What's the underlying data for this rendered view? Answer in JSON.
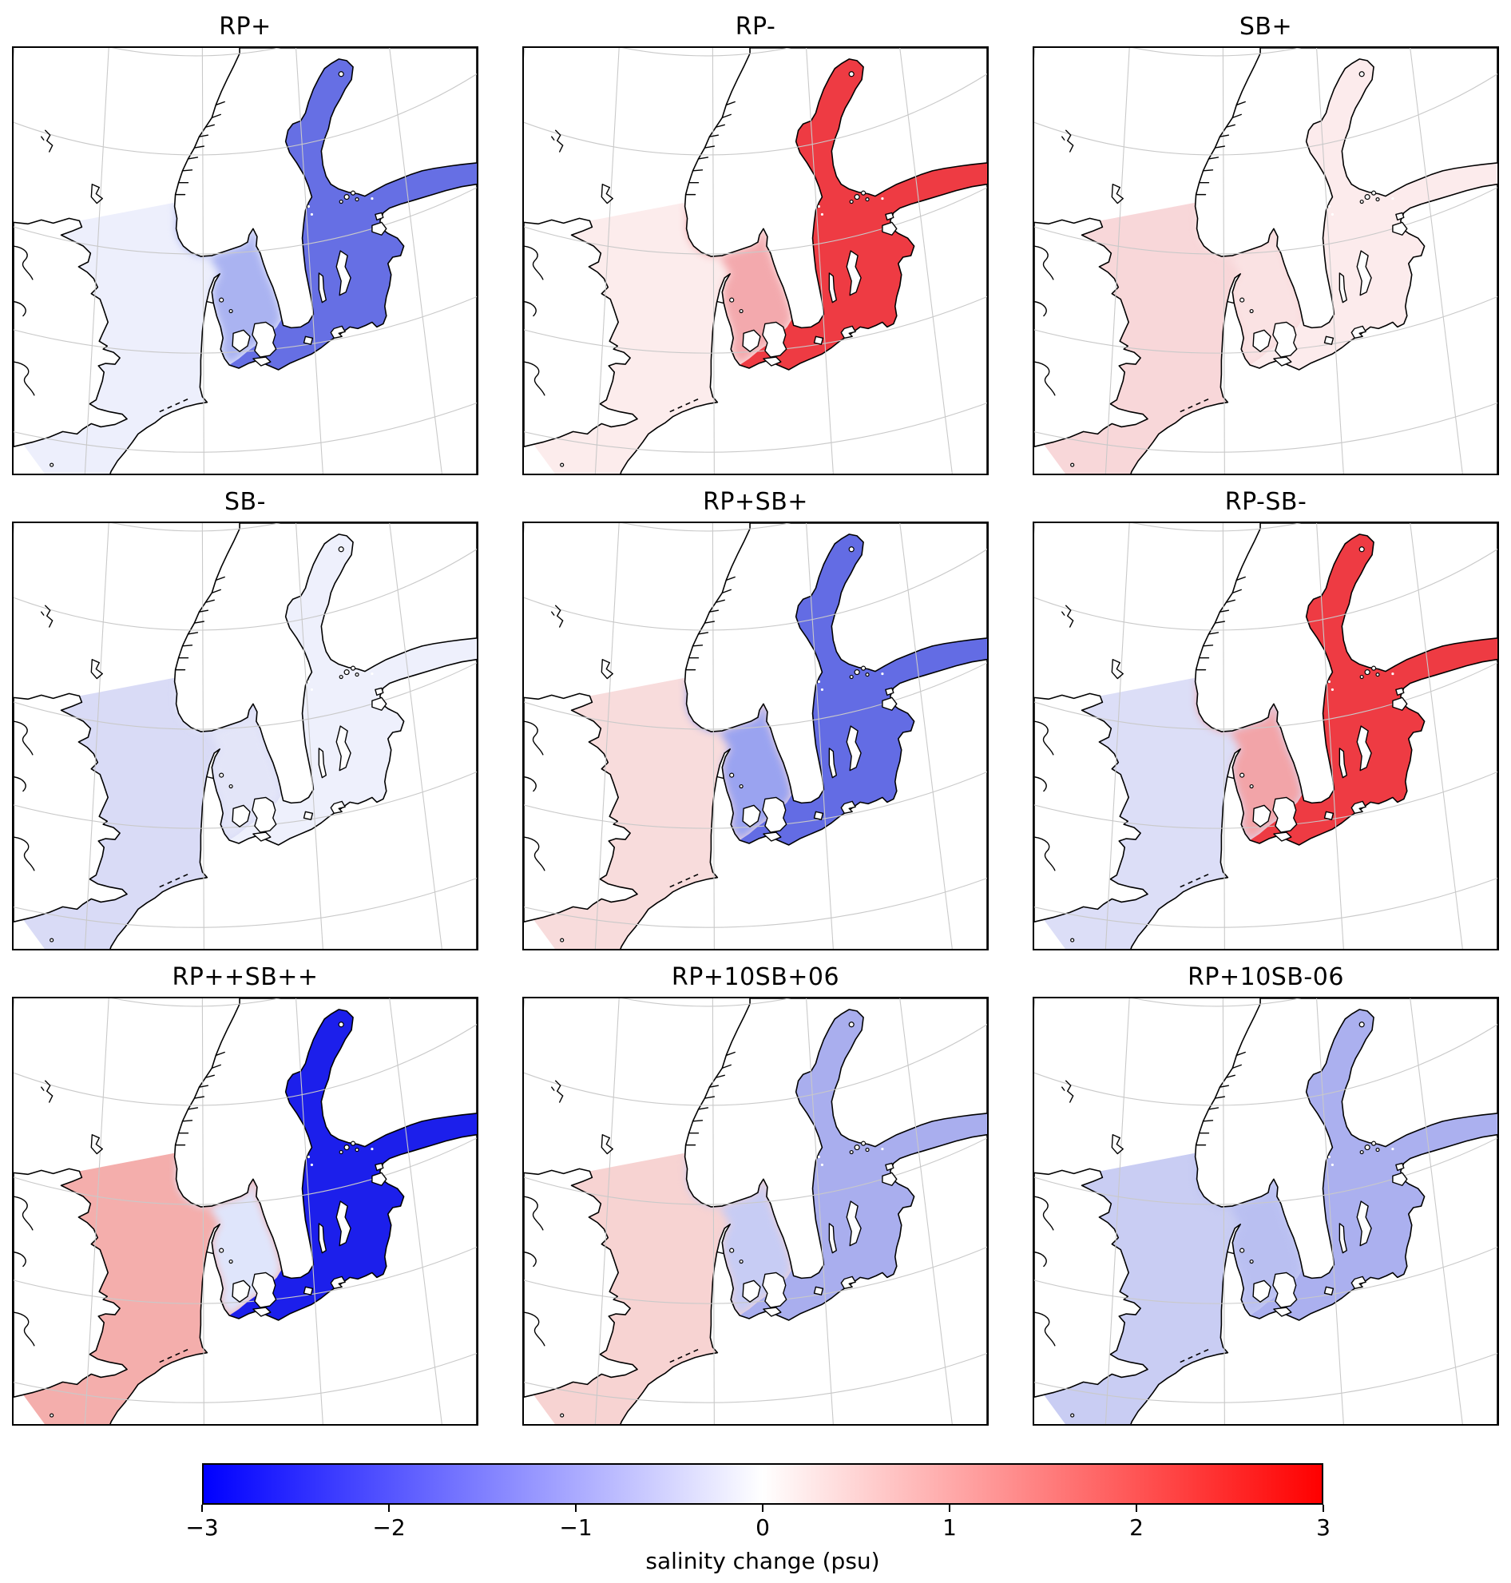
{
  "figure": {
    "panels": [
      {
        "title": "RP+",
        "colors": {
          "north_sea": "#edeffc",
          "kattegat": "#aab3f1",
          "baltic": "#666fe4"
        }
      },
      {
        "title": "RP-",
        "colors": {
          "north_sea": "#fcecec",
          "kattegat": "#f3a9ad",
          "baltic": "#ee3b43"
        }
      },
      {
        "title": "SB+",
        "colors": {
          "north_sea": "#f8d7d9",
          "kattegat": "#fae2e3",
          "baltic": "#fcebec"
        }
      },
      {
        "title": "SB-",
        "colors": {
          "north_sea": "#d9dbf6",
          "kattegat": "#e3e5f8",
          "baltic": "#eef0fc"
        }
      },
      {
        "title": "RP+SB+",
        "colors": {
          "north_sea": "#f8dcdc",
          "kattegat": "#9aa3f0",
          "baltic": "#636ce4"
        }
      },
      {
        "title": "RP-SB-",
        "colors": {
          "north_sea": "#dcdef7",
          "kattegat": "#f2a4a8",
          "baltic": "#ee3b43"
        }
      },
      {
        "title": "RP++SB++",
        "colors": {
          "north_sea": "#f4aeac",
          "kattegat": "#dfe5fb",
          "baltic": "#1c1feb"
        }
      },
      {
        "title": "RP+10SB+06",
        "colors": {
          "north_sea": "#f7d3d2",
          "kattegat": "#c7ccf4",
          "baltic": "#a9aeee"
        }
      },
      {
        "title": "RP+10SB-06",
        "colors": {
          "north_sea": "#c9cdf3",
          "kattegat": "#b9bff1",
          "baltic": "#abb0ef"
        }
      }
    ],
    "colorbar": {
      "label": "salinity change (psu)",
      "min": -3,
      "max": 3,
      "ticks": [
        "−3",
        "−2",
        "−1",
        "0",
        "1",
        "2",
        "3"
      ],
      "gradient": [
        "#0000ff",
        "#ffffff",
        "#ff0000"
      ]
    }
  },
  "chart_data": {
    "type": "heatmap",
    "subtype": "geographic map grid (choropleth of salinity change)",
    "grid": "3 rows x 3 columns",
    "region_shown": "North Sea, Skagerrak/Kattegat and Baltic Sea",
    "colorbar": {
      "label": "salinity change (psu)",
      "min": -3,
      "max": 3,
      "ticks": [
        -3,
        -2,
        -1,
        0,
        1,
        2,
        3
      ],
      "colormap": "blue-white-red (bwr)"
    },
    "panels": [
      {
        "title": "RP+",
        "estimated_mean_change_psu": {
          "north_sea": -0.1,
          "kattegat_skagerrak": -0.9,
          "baltic_sea": -1.8
        }
      },
      {
        "title": "RP-",
        "estimated_mean_change_psu": {
          "north_sea": 0.1,
          "kattegat_skagerrak": 1.0,
          "baltic_sea": 2.3
        }
      },
      {
        "title": "SB+",
        "estimated_mean_change_psu": {
          "north_sea": 0.45,
          "kattegat_skagerrak": 0.3,
          "baltic_sea": 0.2
        }
      },
      {
        "title": "SB-",
        "estimated_mean_change_psu": {
          "north_sea": -0.45,
          "kattegat_skagerrak": -0.3,
          "baltic_sea": -0.2
        }
      },
      {
        "title": "RP+SB+",
        "estimated_mean_change_psu": {
          "north_sea": 0.4,
          "kattegat_skagerrak": -1.1,
          "baltic_sea": -1.9
        }
      },
      {
        "title": "RP-SB-",
        "estimated_mean_change_psu": {
          "north_sea": -0.4,
          "kattegat_skagerrak": 1.0,
          "baltic_sea": 2.3
        }
      },
      {
        "title": "RP++SB++",
        "estimated_mean_change_psu": {
          "north_sea": 0.9,
          "kattegat_skagerrak": -0.4,
          "baltic_sea": -2.9
        }
      },
      {
        "title": "RP+10SB+06",
        "estimated_mean_change_psu": {
          "north_sea": 0.5,
          "kattegat_skagerrak": -0.7,
          "baltic_sea": -1.0
        }
      },
      {
        "title": "RP+10SB-06",
        "estimated_mean_change_psu": {
          "north_sea": -0.65,
          "kattegat_skagerrak": -0.85,
          "baltic_sea": -1.0
        }
      }
    ]
  }
}
